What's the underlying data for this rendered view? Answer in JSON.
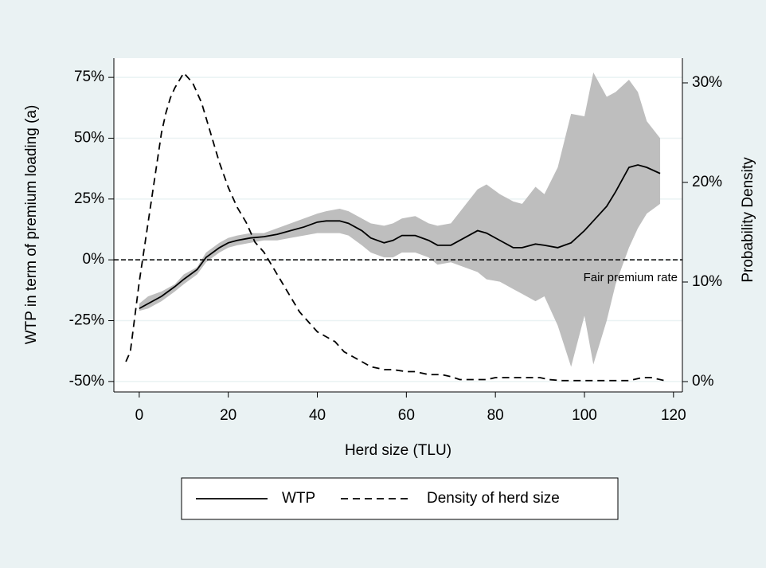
{
  "chart_data": {
    "type": "line",
    "x_label": "Herd size (TLU)",
    "y_label": "WTP in term of premium loading (a)",
    "y2_label": "Probability Density",
    "xlim": [
      -5.7,
      122
    ],
    "xticks": [
      0,
      20,
      40,
      60,
      80,
      100,
      120
    ],
    "ylim": [
      -54.3,
      82.9
    ],
    "yticks": [
      {
        "value": -50,
        "label": "-50%"
      },
      {
        "value": -25,
        "label": "-25%"
      },
      {
        "value": 0,
        "label": "0%"
      },
      {
        "value": 25,
        "label": "25%"
      },
      {
        "value": 50,
        "label": "50%"
      },
      {
        "value": 75,
        "label": "75%"
      }
    ],
    "y2lim": [
      -1.04,
      32.48
    ],
    "y2ticks": [
      {
        "value": 0,
        "label": "0%"
      },
      {
        "value": 10,
        "label": "10%"
      },
      {
        "value": 20,
        "label": "20%"
      },
      {
        "value": 30,
        "label": "30%"
      }
    ],
    "grid": true,
    "legend": "bottom",
    "reference_line": {
      "y": 0,
      "label": "Fair premium rate"
    },
    "band_color": "#bebebe",
    "series": [
      {
        "name": "WTP",
        "color": "#000000",
        "dash": "solid",
        "axis": "y",
        "x": [
          0,
          2,
          5,
          8,
          10,
          13,
          15,
          18,
          20,
          22,
          25,
          28,
          31,
          34,
          37,
          40,
          42,
          45,
          47,
          50,
          52,
          55,
          57,
          59,
          62,
          65,
          67,
          70,
          73,
          76,
          78,
          81,
          84,
          86,
          89,
          91,
          94,
          97,
          100,
          102,
          105,
          107,
          110,
          112,
          114,
          117
        ],
        "values": [
          -20,
          -18,
          -15,
          -11,
          -8,
          -4,
          1,
          5,
          7,
          8,
          9,
          9.5,
          10.5,
          12,
          13.5,
          15.5,
          16,
          16,
          15,
          12,
          9,
          7,
          8,
          10,
          10,
          8,
          6,
          6,
          9,
          12,
          11,
          8,
          5,
          5,
          6.5,
          6,
          5,
          7,
          12,
          16,
          22,
          28,
          38,
          39,
          38,
          35.5
        ],
        "upper": [
          -18,
          -15,
          -13,
          -10,
          -6,
          -3,
          3,
          7,
          9,
          10,
          11,
          11,
          13,
          15,
          17,
          19,
          20,
          21,
          20,
          17,
          15,
          14,
          15,
          17,
          18,
          15,
          14,
          15,
          22,
          29,
          31,
          27,
          24,
          23,
          30,
          27,
          38,
          60,
          59,
          77,
          67,
          69,
          74,
          69,
          57,
          50
        ],
        "lower": [
          -21,
          -20,
          -17,
          -13,
          -10,
          -6,
          -1,
          3,
          5,
          6,
          7,
          8,
          8,
          9,
          10,
          11,
          11,
          11,
          10,
          6,
          3,
          1,
          1,
          3,
          3,
          1,
          -2,
          -1,
          -3,
          -5,
          -8,
          -9,
          -12,
          -14,
          -17,
          -15,
          -27,
          -44,
          -23,
          -43,
          -25,
          -10,
          5,
          13,
          19,
          23
        ]
      },
      {
        "name": "Density of herd size",
        "color": "#000000",
        "dash": "dashed",
        "axis": "y2",
        "x": [
          -3,
          -2,
          0,
          1,
          2,
          3,
          4,
          5,
          6,
          7,
          8,
          10,
          12,
          14,
          16,
          18,
          20,
          22,
          24,
          26,
          28,
          30,
          32,
          34,
          36,
          38,
          40,
          42,
          44,
          46,
          48,
          50,
          52,
          55,
          57,
          60,
          62,
          65,
          68,
          70,
          72,
          75,
          78,
          80,
          85,
          90,
          92,
          95,
          100,
          105,
          110,
          113,
          115,
          118
        ],
        "values": [
          2,
          3,
          10,
          13,
          16,
          19,
          22,
          25,
          27,
          28.5,
          29.5,
          31,
          30,
          28,
          25,
          22,
          19.5,
          17.5,
          16,
          14,
          13,
          11.5,
          10,
          8.5,
          7,
          6,
          5,
          4.5,
          4,
          3,
          2.5,
          2,
          1.5,
          1.2,
          1.2,
          1,
          1,
          0.7,
          0.7,
          0.5,
          0.2,
          0.2,
          0.2,
          0.4,
          0.4,
          0.4,
          0.2,
          0.1,
          0.1,
          0.1,
          0.1,
          0.4,
          0.4,
          0.1
        ]
      }
    ]
  }
}
